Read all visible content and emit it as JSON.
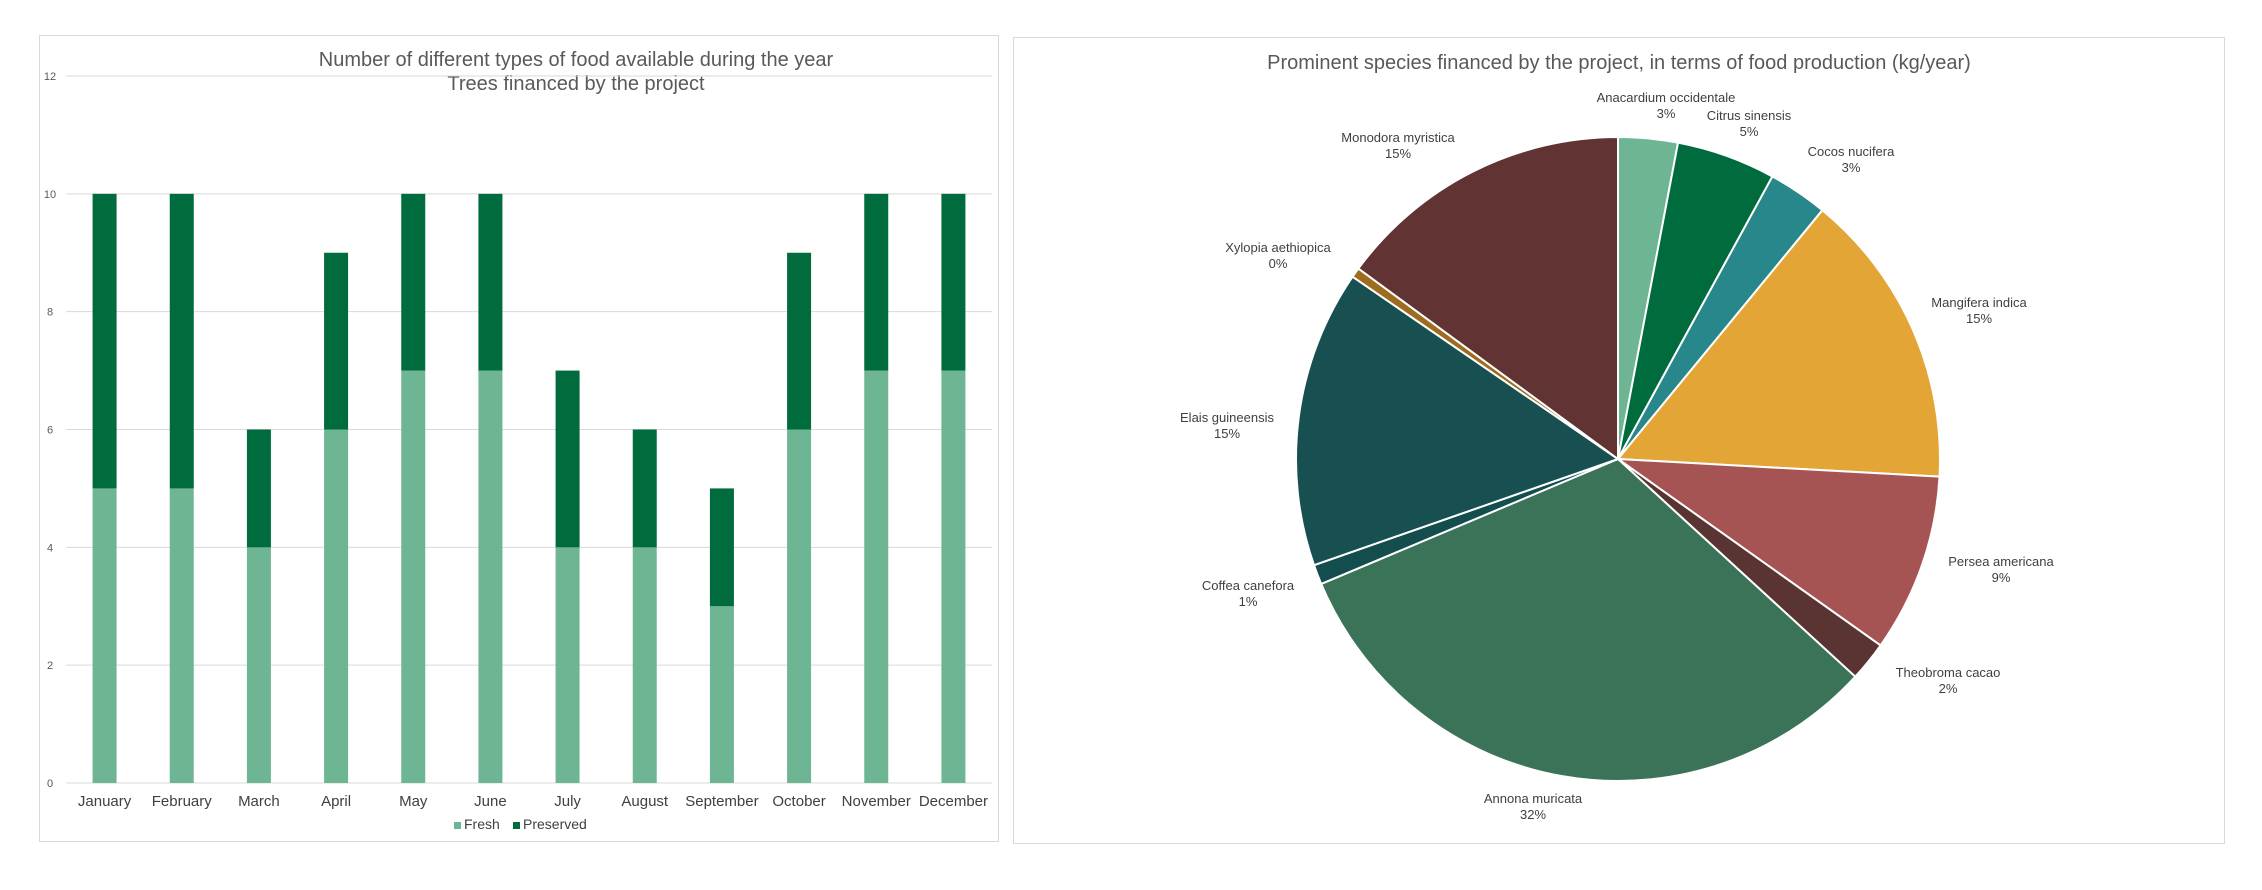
{
  "chart_data": [
    {
      "type": "bar",
      "stacked": true,
      "title": "Number of different types of food available during the year",
      "subtitle": "Trees financed by the project",
      "categories": [
        "January",
        "February",
        "March",
        "April",
        "May",
        "June",
        "July",
        "August",
        "September",
        "October",
        "November",
        "December"
      ],
      "series": [
        {
          "name": "Fresh",
          "values": [
            5,
            5,
            4,
            6,
            7,
            7,
            4,
            4,
            3,
            6,
            7,
            7
          ],
          "color": "#6db593"
        },
        {
          "name": "Preserved",
          "values": [
            5,
            5,
            2,
            3,
            3,
            3,
            3,
            2,
            2,
            3,
            3,
            3
          ],
          "color": "#006b3c"
        }
      ],
      "ylim": [
        0,
        12
      ],
      "yticks": [
        0,
        2,
        4,
        6,
        8,
        10,
        12
      ],
      "grid": true,
      "legend_position": "bottom"
    },
    {
      "type": "pie",
      "title": "Prominent species financed by the project, in terms of  food production (kg/year)",
      "slices": [
        {
          "label": "Anacardium occidentale",
          "value": 3,
          "pct": "3%",
          "color": "#6db593"
        },
        {
          "label": "Citrus sinensis",
          "value": 5,
          "pct": "5%",
          "color": "#006b3c"
        },
        {
          "label": "Cocos nucifera",
          "value": 3,
          "pct": "3%",
          "color": "#28878a"
        },
        {
          "label": "Mangifera indica",
          "value": 15,
          "pct": "15%",
          "color": "#e3a535"
        },
        {
          "label": "Persea americana",
          "value": 9,
          "pct": "9%",
          "color": "#a65453"
        },
        {
          "label": "Theobroma cacao",
          "value": 2,
          "pct": "2%",
          "color": "#593432"
        },
        {
          "label": "Annona muricata",
          "value": 32,
          "pct": "32%",
          "color": "#3a7357"
        },
        {
          "label": "Coffea canefora",
          "value": 1,
          "pct": "1%",
          "color": "#144d4d"
        },
        {
          "label": "Elais guineensis",
          "value": 15,
          "pct": "15%",
          "color": "#184f51"
        },
        {
          "label": "Xylopia aethiopica",
          "value": 0.5,
          "pct": "0%",
          "color": "#9e6c1e"
        },
        {
          "label": "Monodora myristica",
          "value": 15,
          "pct": "15%",
          "color": "#623333"
        }
      ]
    }
  ]
}
